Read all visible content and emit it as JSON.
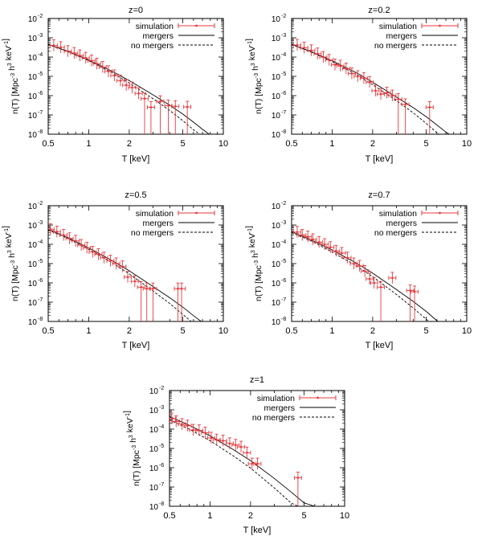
{
  "figure_title": "Temperature function n(T) at five redshifts",
  "chart_data": [
    {
      "type": "line",
      "panel": "z0",
      "title": "z=0",
      "xlabel": "T [keV]",
      "ylabel": "n(T) [Mpc^-3 h^3 keV^-1]",
      "xscale": "log",
      "yscale": "log",
      "xlim": [
        0.5,
        10
      ],
      "ylim": [
        1e-08,
        0.01
      ],
      "xticks": [
        "0.5",
        "1",
        "2",
        "5",
        "10"
      ],
      "yticks": [
        "10-8",
        "10-7",
        "10-6",
        "10-5",
        "10-4",
        "10-3",
        "10-2"
      ],
      "legend": [
        "simulation",
        "mergers",
        "no mergers"
      ],
      "series": [
        {
          "name": "mergers",
          "style": "solid",
          "x": [
            0.5,
            0.7,
            1.0,
            1.5,
            2.0,
            3.0,
            4.0,
            5.0,
            6.0,
            7.0,
            8.2
          ],
          "y": [
            0.00045,
            0.0002,
            7e-05,
            1.8e-05,
            6e-06,
            1.1e-06,
            3.2e-07,
            1.1e-07,
            4.2e-08,
            1.8e-08,
            8e-09
          ]
        },
        {
          "name": "no mergers",
          "style": "dashed",
          "x": [
            0.5,
            0.7,
            1.0,
            1.5,
            2.0,
            3.0,
            4.0,
            5.0,
            6.0,
            7.0
          ],
          "y": [
            0.00045,
            0.00019,
            6.5e-05,
            1.5e-05,
            4.5e-06,
            7e-07,
            1.7e-07,
            5e-08,
            1.7e-08,
            8e-09
          ]
        },
        {
          "name": "simulation",
          "style": "points",
          "x": [
            0.55,
            0.62,
            0.7,
            0.78,
            0.86,
            0.95,
            1.05,
            1.15,
            1.27,
            1.4,
            1.55,
            1.72,
            1.9,
            2.1,
            2.35,
            2.6,
            2.9,
            3.4,
            3.9,
            4.4,
            5.4
          ],
          "y": [
            0.0004,
            0.00032,
            0.0002,
            0.00016,
            0.00012,
            9e-05,
            6.5e-05,
            4.5e-05,
            3e-05,
            1.8e-05,
            1.1e-05,
            6e-06,
            3.5e-06,
            2.6e-06,
            1.3e-06,
            7e-07,
            2.5e-07,
            5e-07,
            3e-07,
            2.8e-07,
            2.6e-07
          ]
        }
      ]
    },
    {
      "type": "line",
      "panel": "z02",
      "title": "z=0.2",
      "xlabel": "T [keV]",
      "ylabel": "n(T) [Mpc^-3 h^3 keV^-1]",
      "xscale": "log",
      "yscale": "log",
      "xlim": [
        0.5,
        10
      ],
      "ylim": [
        1e-08,
        0.01
      ],
      "xticks": [
        "0.5",
        "1",
        "2",
        "5",
        "10"
      ],
      "yticks": [
        "10-8",
        "10-7",
        "10-6",
        "10-5",
        "10-4",
        "10-3",
        "10-2"
      ],
      "legend": [
        "simulation",
        "mergers",
        "no mergers"
      ],
      "series": [
        {
          "name": "mergers",
          "style": "solid",
          "x": [
            0.5,
            0.7,
            1.0,
            1.5,
            2.0,
            3.0,
            4.0,
            5.0,
            6.0,
            7.0,
            8.0
          ],
          "y": [
            0.00045,
            0.00019,
            6.5e-05,
            1.6e-05,
            5e-06,
            8.5e-07,
            2.4e-07,
            8e-08,
            3e-08,
            1.3e-08,
            7e-09
          ]
        },
        {
          "name": "no mergers",
          "style": "dashed",
          "x": [
            0.5,
            0.7,
            1.0,
            1.5,
            2.0,
            3.0,
            4.0,
            5.0,
            6.0,
            6.5
          ],
          "y": [
            0.00045,
            0.00018,
            5.8e-05,
            1.3e-05,
            3.7e-06,
            5.5e-07,
            1.3e-07,
            3.6e-08,
            1.2e-08,
            8e-09
          ]
        },
        {
          "name": "simulation",
          "style": "points",
          "x": [
            0.55,
            0.62,
            0.7,
            0.78,
            0.86,
            0.95,
            1.05,
            1.15,
            1.27,
            1.4,
            1.55,
            1.72,
            1.9,
            2.1,
            2.3,
            2.55,
            2.8,
            3.1,
            3.5,
            5.3
          ],
          "y": [
            0.00042,
            0.0003,
            0.00022,
            0.00015,
            0.0001,
            7e-05,
            4e-05,
            3.5e-05,
            2.5e-05,
            1.4e-05,
            1e-05,
            8e-06,
            5e-06,
            1.8e-06,
            1.2e-06,
            1.4e-06,
            1e-06,
            6.5e-07,
            3.5e-07,
            2.5e-07
          ]
        }
      ]
    },
    {
      "type": "line",
      "panel": "z05",
      "title": "z=0.5",
      "xlabel": "T [keV]",
      "ylabel": "n(T) [Mpc^-3 h^3 keV^-1]",
      "xscale": "log",
      "yscale": "log",
      "xlim": [
        0.5,
        10
      ],
      "ylim": [
        1e-08,
        0.01
      ],
      "xticks": [
        "0.5",
        "1",
        "2",
        "5",
        "10"
      ],
      "yticks": [
        "10-8",
        "10-7",
        "10-6",
        "10-5",
        "10-4",
        "10-3",
        "10-2"
      ],
      "legend": [
        "simulation",
        "mergers",
        "no mergers"
      ],
      "series": [
        {
          "name": "mergers",
          "style": "solid",
          "x": [
            0.5,
            0.7,
            1.0,
            1.5,
            2.0,
            3.0,
            4.0,
            5.0,
            6.0,
            7.0,
            7.6
          ],
          "y": [
            0.0006,
            0.00022,
            6.5e-05,
            1.4e-05,
            4.2e-06,
            6.5e-07,
            1.7e-07,
            5.5e-08,
            2e-08,
            9e-09,
            6e-09
          ]
        },
        {
          "name": "no mergers",
          "style": "dashed",
          "x": [
            0.5,
            0.7,
            1.0,
            1.5,
            2.0,
            3.0,
            4.0,
            5.0,
            6.0,
            6.2
          ],
          "y": [
            0.00055,
            0.0002,
            5.5e-05,
            1.1e-05,
            2.9e-06,
            3.8e-07,
            8.5e-08,
            2.3e-08,
            8e-09,
            7e-09
          ]
        },
        {
          "name": "simulation",
          "style": "points",
          "x": [
            0.52,
            0.58,
            0.65,
            0.72,
            0.8,
            0.88,
            0.97,
            1.07,
            1.18,
            1.3,
            1.45,
            1.6,
            1.78,
            1.95,
            2.2,
            2.45,
            2.7,
            3.0,
            4.6,
            4.9
          ],
          "y": [
            0.0006,
            0.00045,
            0.0003,
            0.0002,
            0.00015,
            9e-05,
            6.5e-05,
            4e-05,
            3e-05,
            2e-05,
            1.4e-05,
            1e-05,
            7e-06,
            2e-06,
            1.2e-06,
            6e-07,
            5e-07,
            5e-07,
            5e-07,
            5e-07
          ]
        }
      ]
    },
    {
      "type": "line",
      "panel": "z07",
      "title": "z=0.7",
      "xlabel": "T [keV]",
      "ylabel": "n(T) [Mpc^-3 h^3 keV^-1]",
      "xscale": "log",
      "yscale": "log",
      "xlim": [
        0.5,
        10
      ],
      "ylim": [
        1e-08,
        0.01
      ],
      "xticks": [
        "0.5",
        "1",
        "2",
        "5",
        "10"
      ],
      "yticks": [
        "10-8",
        "10-7",
        "10-6",
        "10-5",
        "10-4",
        "10-3",
        "10-2"
      ],
      "legend": [
        "simulation",
        "mergers",
        "no mergers"
      ],
      "series": [
        {
          "name": "mergers",
          "style": "solid",
          "x": [
            0.5,
            0.7,
            1.0,
            1.5,
            2.0,
            3.0,
            4.0,
            5.0,
            6.0,
            6.8
          ],
          "y": [
            0.00045,
            0.00017,
            5e-05,
            1.1e-05,
            3.2e-06,
            4.5e-07,
            1.1e-07,
            3.3e-08,
            1.1e-08,
            6e-09
          ]
        },
        {
          "name": "no mergers",
          "style": "dashed",
          "x": [
            0.5,
            0.7,
            1.0,
            1.5,
            2.0,
            3.0,
            4.0,
            5.0,
            5.6
          ],
          "y": [
            0.0004,
            0.00015,
            4e-05,
            8e-06,
            2.1e-06,
            2.5e-07,
            5e-08,
            1.3e-08,
            7e-09
          ]
        },
        {
          "name": "simulation",
          "style": "points",
          "x": [
            0.55,
            0.6,
            0.66,
            0.72,
            0.8,
            0.88,
            0.97,
            1.07,
            1.18,
            1.3,
            1.45,
            1.6,
            1.75,
            1.9,
            2.05,
            2.3,
            2.8,
            3.8,
            4.1
          ],
          "y": [
            0.00043,
            0.0003,
            0.00025,
            0.00018,
            0.00013,
            0.0001,
            7e-05,
            4.5e-05,
            3.5e-05,
            2e-05,
            1e-05,
            7.5e-06,
            4e-06,
            1.6e-06,
            1e-06,
            6e-07,
            1.8e-06,
            4e-07,
            3.5e-07
          ]
        }
      ]
    },
    {
      "type": "line",
      "panel": "z1",
      "title": "z=1",
      "xlabel": "T [keV]",
      "ylabel": "n(T) [Mpc^-3 h^3 keV^-1]",
      "xscale": "log",
      "yscale": "log",
      "xlim": [
        0.5,
        10
      ],
      "ylim": [
        1e-08,
        0.01
      ],
      "xticks": [
        "0.5",
        "1",
        "2",
        "5",
        "10"
      ],
      "yticks": [
        "10-8",
        "10-7",
        "10-6",
        "10-5",
        "10-4",
        "10-3",
        "10-2"
      ],
      "legend": [
        "simulation",
        "mergers",
        "no mergers"
      ],
      "series": [
        {
          "name": "mergers",
          "style": "solid",
          "x": [
            0.5,
            0.7,
            1.0,
            1.5,
            2.0,
            3.0,
            4.0,
            5.0,
            6.0
          ],
          "y": [
            0.00045,
            0.00016,
            4.5e-05,
            8.5e-06,
            2.3e-06,
            2.8e-07,
            5.5e-08,
            1.5e-08,
            1e-08
          ]
        },
        {
          "name": "no mergers",
          "style": "dashed",
          "x": [
            0.5,
            0.7,
            1.0,
            1.5,
            2.0,
            3.0,
            4.0,
            4.5
          ],
          "y": [
            0.0003,
            0.0001,
            2.5e-05,
            4e-06,
            9.5e-07,
            9e-08,
            1.5e-08,
            1e-08
          ]
        },
        {
          "name": "simulation",
          "style": "points",
          "x": [
            0.52,
            0.56,
            0.62,
            0.68,
            0.75,
            0.83,
            0.92,
            1.02,
            1.12,
            1.25,
            1.4,
            1.55,
            1.7,
            1.88,
            2.05,
            2.25,
            4.5
          ],
          "y": [
            0.00035,
            0.00025,
            0.00018,
            0.00015,
            9e-05,
            8.5e-05,
            6.5e-05,
            3.5e-05,
            2.8e-05,
            2.5e-05,
            1.8e-05,
            1.5e-05,
            1.2e-05,
            6e-06,
            1.6e-06,
            1.6e-06,
            3e-07
          ]
        }
      ]
    }
  ]
}
